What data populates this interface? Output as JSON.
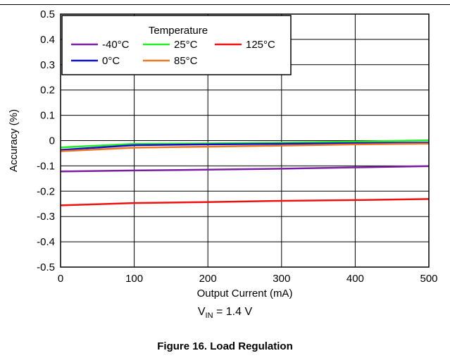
{
  "chart_data": {
    "type": "line",
    "title": "",
    "xlabel": "Output Current (mA)",
    "ylabel": "Accuracy (%)",
    "xlim": [
      0,
      500
    ],
    "ylim": [
      -0.5,
      0.5
    ],
    "xticks": [
      0,
      100,
      200,
      300,
      400,
      500
    ],
    "xtick_labels": [
      "0",
      "100",
      "200",
      "300",
      "400",
      "500"
    ],
    "yticks": [
      0.5,
      0.4,
      0.3,
      0.2,
      0.1,
      0,
      -0.1,
      -0.2,
      -0.3,
      -0.4,
      -0.5
    ],
    "ytick_labels": [
      "0.5",
      "0.4",
      "0.3",
      "0.2",
      "0.1",
      "0",
      "-0.1",
      "-0.2",
      "-0.3",
      "-0.4",
      "-0.5"
    ],
    "grid": true,
    "legend": {
      "title": "Temperature",
      "placement": "top-left"
    },
    "x": [
      0,
      100,
      200,
      300,
      400,
      500
    ],
    "series": [
      {
        "name": "-40°C",
        "color": "#7b1fa2",
        "values": [
          -0.122,
          -0.118,
          -0.115,
          -0.111,
          -0.106,
          -0.101
        ]
      },
      {
        "name": "25°C",
        "color": "#22ee22",
        "values": [
          -0.027,
          -0.013,
          -0.011,
          -0.008,
          -0.004,
          0.001
        ]
      },
      {
        "name": "125°C",
        "color": "#ee1111",
        "values": [
          -0.256,
          -0.247,
          -0.243,
          -0.238,
          -0.235,
          -0.231
        ]
      },
      {
        "name": "0°C",
        "color": "#1111cc",
        "values": [
          -0.037,
          -0.018,
          -0.015,
          -0.013,
          -0.01,
          -0.008
        ]
      },
      {
        "name": "85°C",
        "color": "#ee7722",
        "values": [
          -0.042,
          -0.028,
          -0.024,
          -0.02,
          -0.015,
          -0.012
        ]
      }
    ]
  },
  "condition": {
    "prefix": "V",
    "subscript": "IN",
    "suffix": " = 1.4 V"
  },
  "caption": "Figure 16. Load Regulation"
}
